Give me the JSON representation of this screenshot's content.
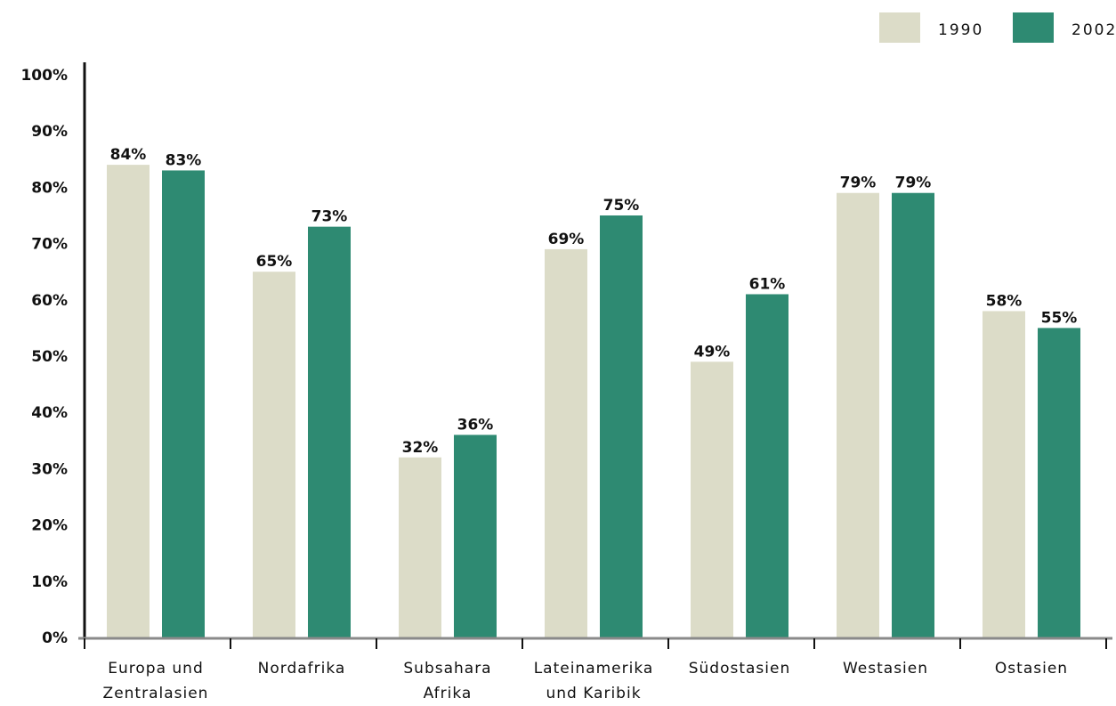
{
  "chart_data": {
    "type": "bar",
    "title": "",
    "xlabel": "",
    "ylabel": "",
    "ylim": [
      0,
      100
    ],
    "y_ticks": [
      "0%",
      "10%",
      "20%",
      "30%",
      "40%",
      "50%",
      "60%",
      "70%",
      "80%",
      "90%",
      "100%"
    ],
    "categories": [
      [
        "Europa und",
        "Zentralasien"
      ],
      [
        "Nordafrika"
      ],
      [
        "Subsahara",
        "Afrika"
      ],
      [
        "Lateinamerika",
        "und Karibik"
      ],
      [
        "Südostasien"
      ],
      [
        "Westasien"
      ],
      [
        "Ostasien"
      ]
    ],
    "series": [
      {
        "name": "1990",
        "values": [
          84,
          65,
          32,
          69,
          49,
          79,
          58
        ],
        "labels": [
          "84%",
          "65%",
          "32%",
          "69%",
          "49%",
          "79%",
          "58%"
        ],
        "color": "#dcdcc8"
      },
      {
        "name": "2002",
        "values": [
          83,
          73,
          36,
          75,
          61,
          79,
          55
        ],
        "labels": [
          "83%",
          "73%",
          "36%",
          "75%",
          "61%",
          "79%",
          "55%"
        ],
        "color": "#2e8a72"
      }
    ],
    "legend_position": "top-right",
    "grid": false
  }
}
